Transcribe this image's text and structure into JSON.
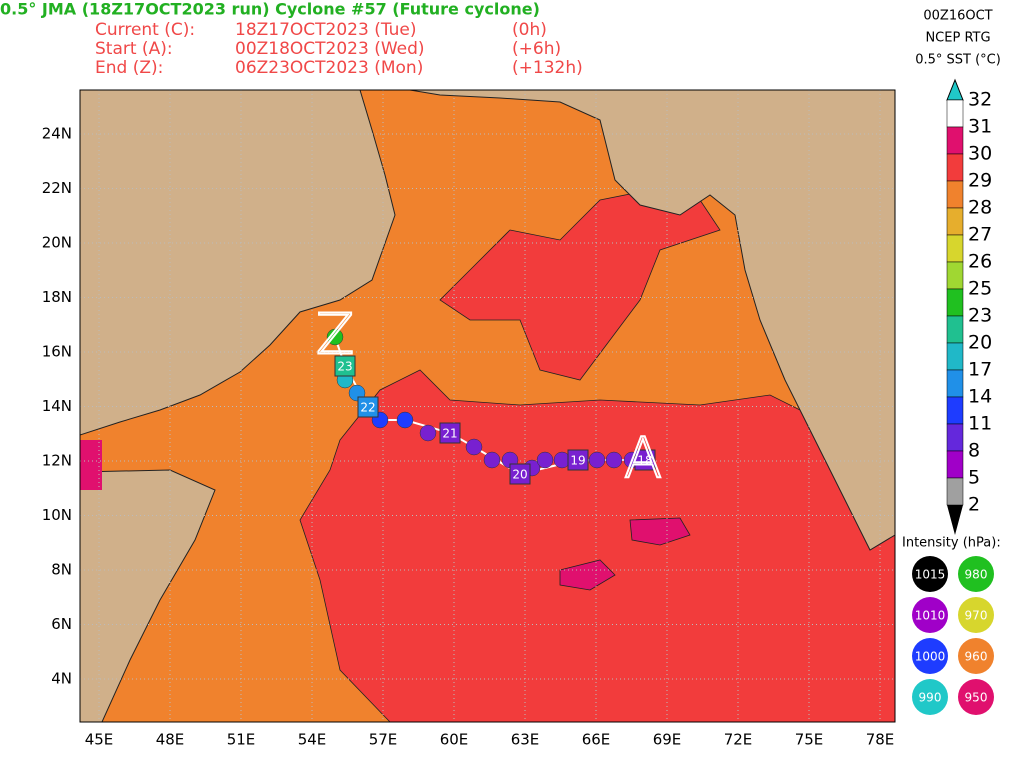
{
  "header": {
    "title": "0.5° JMA (18Z17OCT2023 run) Cyclone #57 (Future cyclone)",
    "lines": [
      [
        "Current (C):",
        "18Z17OCT2023 (Tue)",
        "(0h)"
      ],
      [
        "Start (A):",
        "00Z18OCT2023 (Wed)",
        "(+6h)"
      ],
      [
        "End (Z):",
        "06Z23OCT2023 (Mon)",
        "(+132h)"
      ]
    ]
  },
  "top_right": [
    "00Z16OCT",
    "NCEP RTG",
    "0.5° SST (°C)"
  ],
  "colorbar": {
    "ticks": [
      32,
      31,
      30,
      29,
      28,
      27,
      26,
      25,
      23,
      20,
      17,
      14,
      11,
      8,
      5,
      2
    ]
  },
  "map": {
    "lat_labels": [
      "24N",
      "22N",
      "20N",
      "18N",
      "16N",
      "14N",
      "12N",
      "10N",
      "8N",
      "6N",
      "4N"
    ],
    "lon_labels": [
      "45E",
      "48E",
      "51E",
      "54E",
      "57E",
      "60E",
      "63E",
      "66E",
      "69E",
      "72E",
      "75E",
      "78E"
    ],
    "track_labels": [
      "23",
      "22",
      "21",
      "20",
      "19",
      "18"
    ],
    "markers": [
      "Z",
      "A"
    ]
  },
  "legend": {
    "title": "Intensity (hPa):",
    "items": [
      1015,
      980,
      1010,
      970,
      1000,
      960,
      990,
      950
    ]
  }
}
